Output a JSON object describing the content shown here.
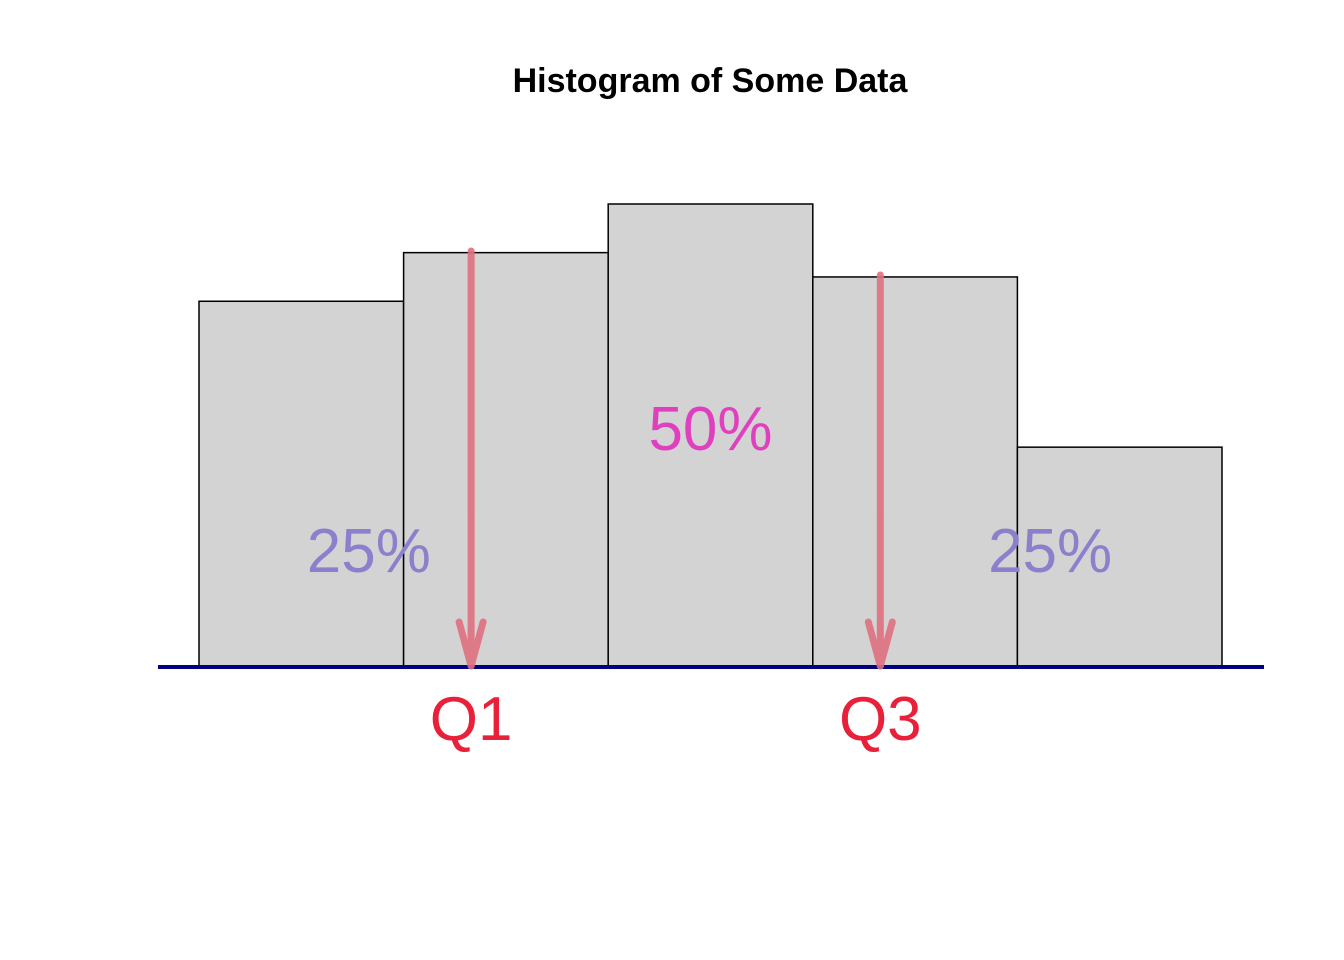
{
  "chart_data": {
    "type": "bar",
    "title": "Histogram of Some Data",
    "xlabel": "",
    "ylabel": "",
    "grid": false,
    "legend": "none",
    "bins": [
      {
        "value": 15
      },
      {
        "value": 17
      },
      {
        "value": 19
      },
      {
        "value": 16
      },
      {
        "value": 9
      }
    ],
    "ylim": [
      0,
      19
    ],
    "quartiles": [
      {
        "label": "Q1",
        "bin_position": 1.33
      },
      {
        "label": "Q3",
        "bin_position": 3.33
      }
    ],
    "region_labels": [
      {
        "text": "25%",
        "bin_position": 0.83,
        "color": "#8b80cc"
      },
      {
        "text": "50%",
        "bin_position": 2.5,
        "color": "#e040c0"
      },
      {
        "text": "25%",
        "bin_position": 4.16,
        "color": "#8b80cc"
      }
    ],
    "colors": {
      "bar_fill": "#d3d3d3",
      "bar_stroke": "#000000",
      "baseline": "#000080",
      "arrow": "#e07080",
      "quartile_text": "#e8203a"
    }
  }
}
